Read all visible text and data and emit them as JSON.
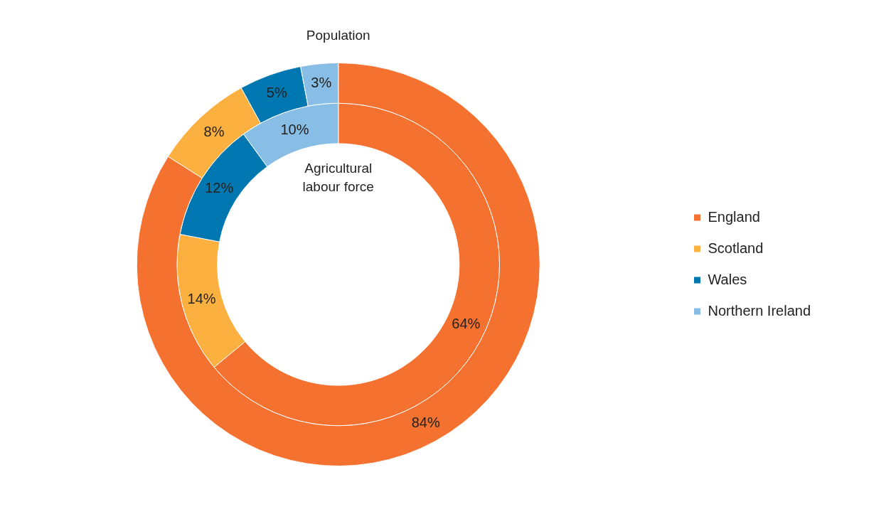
{
  "chart_data": {
    "type": "donut",
    "categories": [
      "England",
      "Scotland",
      "Wales",
      "Northern Ireland"
    ],
    "colors": [
      "#f4712f",
      "#fbb040",
      "#0077b0",
      "#88bde6"
    ],
    "series": [
      {
        "name": "Population",
        "values": [
          84,
          8,
          5,
          3
        ],
        "value_labels": [
          "84%",
          "8%",
          "5%",
          "3%"
        ]
      },
      {
        "name": "Agricultural labour force",
        "values": [
          64,
          14,
          12,
          10
        ],
        "value_labels": [
          "64%",
          "14%",
          "12%",
          "10%"
        ]
      }
    ],
    "legend": "right"
  }
}
